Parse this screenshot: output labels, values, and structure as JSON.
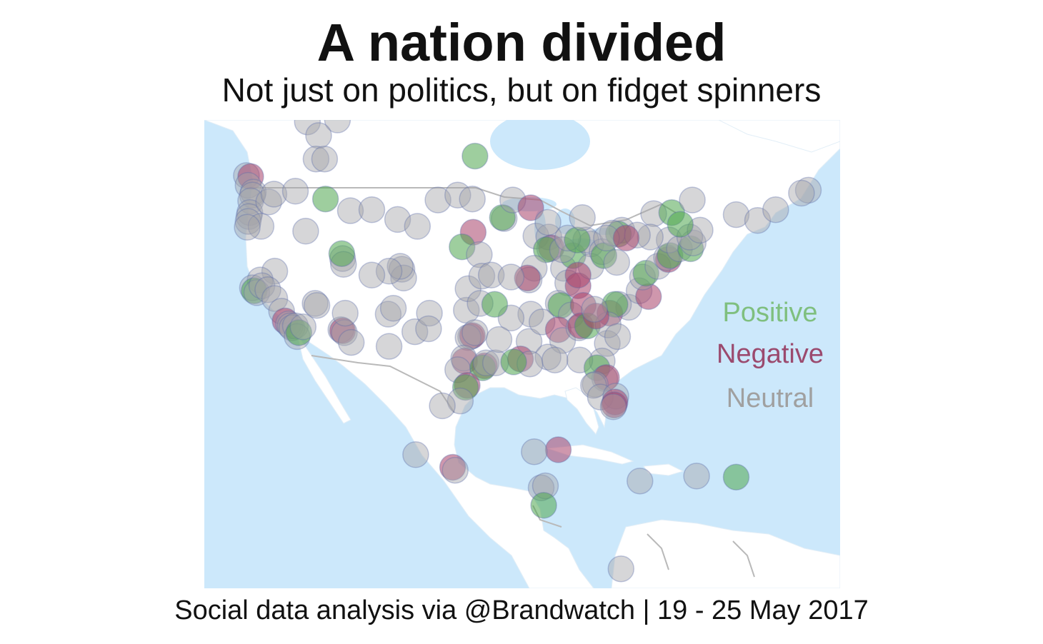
{
  "title": "A nation divided",
  "subtitle": "Not just on politics, but on fidget spinners",
  "footer": "Social data analysis via @Brandwatch | 19 - 25 May 2017",
  "legend": {
    "positive": "Positive",
    "negative": "Negative",
    "neutral": "Neutral"
  },
  "colors": {
    "ocean": "#cce8fb",
    "land": "#ffffff",
    "border": "#b9b9b9",
    "positive": "#4ea64e",
    "negative": "#a8416a",
    "neutral": "#a4a4a8",
    "point_outline": "#5a6aa8",
    "legend_positive": "#7fbf7f",
    "legend_negative": "#9b4a6e",
    "legend_neutral": "#a0a0a0"
  },
  "map_extent": {
    "lon": [
      -128,
      -54
    ],
    "lat": [
      7,
      55
    ]
  },
  "points": [
    {
      "lon": -116.0,
      "lat": 54.8,
      "s": "neutral"
    },
    {
      "lon": -112.5,
      "lat": 55.0,
      "s": "neutral"
    },
    {
      "lon": -114.7,
      "lat": 53.4,
      "s": "neutral"
    },
    {
      "lon": -96.5,
      "lat": 51.3,
      "s": "positive"
    },
    {
      "lon": -115.0,
      "lat": 51.0,
      "s": "neutral"
    },
    {
      "lon": -114.0,
      "lat": 51.0,
      "s": "neutral"
    },
    {
      "lon": -123.1,
      "lat": 49.3,
      "s": "neutral"
    },
    {
      "lon": -122.6,
      "lat": 49.2,
      "s": "negative"
    },
    {
      "lon": -122.9,
      "lat": 48.3,
      "s": "neutral"
    },
    {
      "lon": -122.3,
      "lat": 47.6,
      "s": "neutral"
    },
    {
      "lon": -122.4,
      "lat": 47.3,
      "s": "neutral"
    },
    {
      "lon": -122.6,
      "lat": 46.7,
      "s": "neutral"
    },
    {
      "lon": -122.7,
      "lat": 45.5,
      "s": "neutral"
    },
    {
      "lon": -122.8,
      "lat": 45.1,
      "s": "neutral"
    },
    {
      "lon": -122.9,
      "lat": 44.6,
      "s": "neutral"
    },
    {
      "lon": -120.5,
      "lat": 46.6,
      "s": "neutral"
    },
    {
      "lon": -119.9,
      "lat": 47.4,
      "s": "neutral"
    },
    {
      "lon": -121.4,
      "lat": 44.1,
      "s": "neutral"
    },
    {
      "lon": -117.4,
      "lat": 47.7,
      "s": "neutral"
    },
    {
      "lon": -116.2,
      "lat": 43.6,
      "s": "neutral"
    },
    {
      "lon": -123.0,
      "lat": 44.0,
      "s": "neutral"
    },
    {
      "lon": -113.9,
      "lat": 46.9,
      "s": "positive"
    },
    {
      "lon": -111.0,
      "lat": 45.7,
      "s": "neutral"
    },
    {
      "lon": -105.5,
      "lat": 44.8,
      "s": "neutral"
    },
    {
      "lon": -108.5,
      "lat": 45.8,
      "s": "neutral"
    },
    {
      "lon": -100.8,
      "lat": 46.8,
      "s": "neutral"
    },
    {
      "lon": -98.5,
      "lat": 47.3,
      "s": "neutral"
    },
    {
      "lon": -96.8,
      "lat": 46.9,
      "s": "neutral"
    },
    {
      "lon": -103.2,
      "lat": 44.1,
      "s": "neutral"
    },
    {
      "lon": -96.7,
      "lat": 43.5,
      "s": "negative"
    },
    {
      "lon": -98.0,
      "lat": 42.0,
      "s": "positive"
    },
    {
      "lon": -96.0,
      "lat": 41.2,
      "s": "neutral"
    },
    {
      "lon": -111.9,
      "lat": 40.8,
      "s": "neutral"
    },
    {
      "lon": -111.8,
      "lat": 40.2,
      "s": "neutral"
    },
    {
      "lon": -112.0,
      "lat": 41.3,
      "s": "positive"
    },
    {
      "lon": -105.0,
      "lat": 39.7,
      "s": "neutral"
    },
    {
      "lon": -104.8,
      "lat": 38.8,
      "s": "neutral"
    },
    {
      "lon": -105.2,
      "lat": 40.0,
      "s": "neutral"
    },
    {
      "lon": -106.5,
      "lat": 39.5,
      "s": "neutral"
    },
    {
      "lon": -108.5,
      "lat": 39.1,
      "s": "neutral"
    },
    {
      "lon": -119.8,
      "lat": 39.5,
      "s": "neutral"
    },
    {
      "lon": -121.5,
      "lat": 38.6,
      "s": "neutral"
    },
    {
      "lon": -122.4,
      "lat": 37.8,
      "s": "neutral"
    },
    {
      "lon": -122.2,
      "lat": 37.5,
      "s": "positive"
    },
    {
      "lon": -121.9,
      "lat": 37.3,
      "s": "neutral"
    },
    {
      "lon": -121.3,
      "lat": 38.0,
      "s": "neutral"
    },
    {
      "lon": -120.6,
      "lat": 37.6,
      "s": "neutral"
    },
    {
      "lon": -119.8,
      "lat": 36.7,
      "s": "neutral"
    },
    {
      "lon": -119.0,
      "lat": 35.4,
      "s": "neutral"
    },
    {
      "lon": -118.6,
      "lat": 34.4,
      "s": "negative"
    },
    {
      "lon": -118.2,
      "lat": 34.1,
      "s": "neutral"
    },
    {
      "lon": -118.0,
      "lat": 33.9,
      "s": "neutral"
    },
    {
      "lon": -117.8,
      "lat": 33.7,
      "s": "neutral"
    },
    {
      "lon": -117.4,
      "lat": 33.9,
      "s": "neutral"
    },
    {
      "lon": -117.2,
      "lat": 32.8,
      "s": "neutral"
    },
    {
      "lon": -117.0,
      "lat": 33.2,
      "s": "positive"
    },
    {
      "lon": -116.5,
      "lat": 33.8,
      "s": "neutral"
    },
    {
      "lon": -115.1,
      "lat": 36.2,
      "s": "neutral"
    },
    {
      "lon": -114.9,
      "lat": 36.0,
      "s": "neutral"
    },
    {
      "lon": -112.1,
      "lat": 33.5,
      "s": "neutral"
    },
    {
      "lon": -111.9,
      "lat": 33.4,
      "s": "negative"
    },
    {
      "lon": -111.7,
      "lat": 33.2,
      "s": "neutral"
    },
    {
      "lon": -110.9,
      "lat": 32.2,
      "s": "neutral"
    },
    {
      "lon": -111.6,
      "lat": 35.2,
      "s": "neutral"
    },
    {
      "lon": -106.6,
      "lat": 35.1,
      "s": "neutral"
    },
    {
      "lon": -106.0,
      "lat": 35.7,
      "s": "neutral"
    },
    {
      "lon": -106.5,
      "lat": 31.8,
      "s": "neutral"
    },
    {
      "lon": -103.5,
      "lat": 33.3,
      "s": "neutral"
    },
    {
      "lon": -101.8,
      "lat": 35.2,
      "s": "neutral"
    },
    {
      "lon": -101.9,
      "lat": 33.6,
      "s": "neutral"
    },
    {
      "lon": -97.5,
      "lat": 35.5,
      "s": "neutral"
    },
    {
      "lon": -97.3,
      "lat": 37.7,
      "s": "neutral"
    },
    {
      "lon": -95.7,
      "lat": 39.0,
      "s": "neutral"
    },
    {
      "lon": -94.6,
      "lat": 39.1,
      "s": "neutral"
    },
    {
      "lon": -95.9,
      "lat": 36.2,
      "s": "neutral"
    },
    {
      "lon": -97.0,
      "lat": 32.8,
      "s": "neutral"
    },
    {
      "lon": -96.8,
      "lat": 32.9,
      "s": "negative"
    },
    {
      "lon": -97.3,
      "lat": 32.7,
      "s": "neutral"
    },
    {
      "lon": -96.5,
      "lat": 33.2,
      "s": "neutral"
    },
    {
      "lon": -97.7,
      "lat": 30.3,
      "s": "negative"
    },
    {
      "lon": -97.8,
      "lat": 30.6,
      "s": "neutral"
    },
    {
      "lon": -98.5,
      "lat": 29.4,
      "s": "neutral"
    },
    {
      "lon": -95.4,
      "lat": 29.8,
      "s": "negative"
    },
    {
      "lon": -95.6,
      "lat": 29.6,
      "s": "positive"
    },
    {
      "lon": -95.2,
      "lat": 30.1,
      "s": "neutral"
    },
    {
      "lon": -94.1,
      "lat": 30.1,
      "s": "neutral"
    },
    {
      "lon": -97.4,
      "lat": 27.8,
      "s": "negative"
    },
    {
      "lon": -97.6,
      "lat": 27.6,
      "s": "positive"
    },
    {
      "lon": -98.2,
      "lat": 26.2,
      "s": "neutral"
    },
    {
      "lon": -100.3,
      "lat": 25.7,
      "s": "neutral"
    },
    {
      "lon": -103.4,
      "lat": 20.7,
      "s": "neutral"
    },
    {
      "lon": -99.1,
      "lat": 19.4,
      "s": "negative"
    },
    {
      "lon": -98.8,
      "lat": 19.1,
      "s": "neutral"
    },
    {
      "lon": -93.1,
      "lat": 44.9,
      "s": "neutral"
    },
    {
      "lon": -93.3,
      "lat": 45.0,
      "s": "positive"
    },
    {
      "lon": -92.1,
      "lat": 46.8,
      "s": "neutral"
    },
    {
      "lon": -90.0,
      "lat": 46.0,
      "s": "negative"
    },
    {
      "lon": -89.4,
      "lat": 43.1,
      "s": "neutral"
    },
    {
      "lon": -87.9,
      "lat": 43.0,
      "s": "neutral"
    },
    {
      "lon": -88.0,
      "lat": 44.5,
      "s": "neutral"
    },
    {
      "lon": -87.6,
      "lat": 41.9,
      "s": "negative"
    },
    {
      "lon": -87.8,
      "lat": 41.8,
      "s": "neutral"
    },
    {
      "lon": -88.2,
      "lat": 41.7,
      "s": "positive"
    },
    {
      "lon": -89.6,
      "lat": 39.8,
      "s": "neutral"
    },
    {
      "lon": -90.2,
      "lat": 38.6,
      "s": "neutral"
    },
    {
      "lon": -90.4,
      "lat": 38.8,
      "s": "negative"
    },
    {
      "lon": -92.3,
      "lat": 38.9,
      "s": "neutral"
    },
    {
      "lon": -86.2,
      "lat": 39.8,
      "s": "neutral"
    },
    {
      "lon": -85.1,
      "lat": 41.1,
      "s": "positive"
    },
    {
      "lon": -86.3,
      "lat": 41.7,
      "s": "neutral"
    },
    {
      "lon": -85.7,
      "lat": 38.3,
      "s": "neutral"
    },
    {
      "lon": -84.5,
      "lat": 38.0,
      "s": "negative"
    },
    {
      "lon": -83.0,
      "lat": 42.3,
      "s": "neutral"
    },
    {
      "lon": -83.6,
      "lat": 42.7,
      "s": "neutral"
    },
    {
      "lon": -85.7,
      "lat": 42.9,
      "s": "neutral"
    },
    {
      "lon": -84.6,
      "lat": 42.7,
      "s": "positive"
    },
    {
      "lon": -84.0,
      "lat": 45.0,
      "s": "neutral"
    },
    {
      "lon": -83.0,
      "lat": 40.0,
      "s": "neutral"
    },
    {
      "lon": -84.5,
      "lat": 39.1,
      "s": "negative"
    },
    {
      "lon": -81.7,
      "lat": 41.5,
      "s": "neutral"
    },
    {
      "lon": -81.5,
      "lat": 41.1,
      "s": "positive"
    },
    {
      "lon": -80.0,
      "lat": 40.4,
      "s": "neutral"
    },
    {
      "lon": -79.4,
      "lat": 43.7,
      "s": "neutral"
    },
    {
      "lon": -79.8,
      "lat": 43.3,
      "s": "positive"
    },
    {
      "lon": -80.5,
      "lat": 43.4,
      "s": "neutral"
    },
    {
      "lon": -81.2,
      "lat": 42.9,
      "s": "neutral"
    },
    {
      "lon": -75.7,
      "lat": 45.4,
      "s": "neutral"
    },
    {
      "lon": -73.6,
      "lat": 45.5,
      "s": "positive"
    },
    {
      "lon": -71.2,
      "lat": 46.8,
      "s": "neutral"
    },
    {
      "lon": -78.6,
      "lat": 35.8,
      "s": "neutral"
    },
    {
      "lon": -80.8,
      "lat": 35.2,
      "s": "negative"
    },
    {
      "lon": -79.8,
      "lat": 36.1,
      "s": "neutral"
    },
    {
      "lon": -80.2,
      "lat": 36.1,
      "s": "positive"
    },
    {
      "lon": -77.4,
      "lat": 37.5,
      "s": "neutral"
    },
    {
      "lon": -76.3,
      "lat": 36.9,
      "s": "negative"
    },
    {
      "lon": -77.0,
      "lat": 38.9,
      "s": "neutral"
    },
    {
      "lon": -76.6,
      "lat": 39.3,
      "s": "positive"
    },
    {
      "lon": -75.2,
      "lat": 40.0,
      "s": "neutral"
    },
    {
      "lon": -74.0,
      "lat": 40.7,
      "s": "negative"
    },
    {
      "lon": -74.2,
      "lat": 40.9,
      "s": "neutral"
    },
    {
      "lon": -73.8,
      "lat": 41.1,
      "s": "positive"
    },
    {
      "lon": -73.9,
      "lat": 42.7,
      "s": "neutral"
    },
    {
      "lon": -76.1,
      "lat": 43.0,
      "s": "neutral"
    },
    {
      "lon": -77.6,
      "lat": 43.2,
      "s": "neutral"
    },
    {
      "lon": -78.9,
      "lat": 42.9,
      "s": "negative"
    },
    {
      "lon": -72.7,
      "lat": 41.8,
      "s": "neutral"
    },
    {
      "lon": -71.4,
      "lat": 41.8,
      "s": "positive"
    },
    {
      "lon": -71.1,
      "lat": 42.4,
      "s": "neutral"
    },
    {
      "lon": -71.5,
      "lat": 43.0,
      "s": "neutral"
    },
    {
      "lon": -70.3,
      "lat": 43.7,
      "s": "neutral"
    },
    {
      "lon": -72.6,
      "lat": 44.3,
      "s": "positive"
    },
    {
      "lon": -66.1,
      "lat": 45.3,
      "s": "neutral"
    },
    {
      "lon": -63.6,
      "lat": 44.7,
      "s": "neutral"
    },
    {
      "lon": -61.5,
      "lat": 45.8,
      "s": "neutral"
    },
    {
      "lon": -57.7,
      "lat": 47.8,
      "s": "neutral"
    },
    {
      "lon": -58.5,
      "lat": 47.5,
      "s": "neutral"
    },
    {
      "lon": -86.8,
      "lat": 36.2,
      "s": "neutral"
    },
    {
      "lon": -86.5,
      "lat": 36.0,
      "s": "positive"
    },
    {
      "lon": -85.3,
      "lat": 35.0,
      "s": "neutral"
    },
    {
      "lon": -83.9,
      "lat": 36.0,
      "s": "negative"
    },
    {
      "lon": -90.0,
      "lat": 35.1,
      "s": "neutral"
    },
    {
      "lon": -92.3,
      "lat": 34.7,
      "s": "neutral"
    },
    {
      "lon": -94.2,
      "lat": 36.1,
      "s": "positive"
    },
    {
      "lon": -90.2,
      "lat": 32.3,
      "s": "neutral"
    },
    {
      "lon": -88.7,
      "lat": 34.3,
      "s": "neutral"
    },
    {
      "lon": -86.8,
      "lat": 33.5,
      "s": "negative"
    },
    {
      "lon": -86.3,
      "lat": 32.4,
      "s": "neutral"
    },
    {
      "lon": -88.0,
      "lat": 30.7,
      "s": "neutral"
    },
    {
      "lon": -91.2,
      "lat": 30.5,
      "s": "negative"
    },
    {
      "lon": -90.1,
      "lat": 30.0,
      "s": "neutral"
    },
    {
      "lon": -92.0,
      "lat": 30.2,
      "s": "positive"
    },
    {
      "lon": -93.7,
      "lat": 32.5,
      "s": "neutral"
    },
    {
      "lon": -84.4,
      "lat": 33.7,
      "s": "neutral"
    },
    {
      "lon": -84.2,
      "lat": 33.9,
      "s": "negative"
    },
    {
      "lon": -83.4,
      "lat": 33.9,
      "s": "positive"
    },
    {
      "lon": -81.1,
      "lat": 32.1,
      "s": "neutral"
    },
    {
      "lon": -81.0,
      "lat": 34.0,
      "s": "neutral"
    },
    {
      "lon": -79.9,
      "lat": 32.8,
      "s": "neutral"
    },
    {
      "lon": -82.4,
      "lat": 34.9,
      "s": "negative"
    },
    {
      "lon": -82.6,
      "lat": 35.6,
      "s": "neutral"
    },
    {
      "lon": -81.7,
      "lat": 30.3,
      "s": "neutral"
    },
    {
      "lon": -84.3,
      "lat": 30.4,
      "s": "neutral"
    },
    {
      "lon": -87.2,
      "lat": 30.4,
      "s": "neutral"
    },
    {
      "lon": -82.3,
      "lat": 29.6,
      "s": "positive"
    },
    {
      "lon": -81.4,
      "lat": 28.5,
      "s": "neutral"
    },
    {
      "lon": -81.2,
      "lat": 28.6,
      "s": "negative"
    },
    {
      "lon": -82.5,
      "lat": 27.9,
      "s": "neutral"
    },
    {
      "lon": -82.7,
      "lat": 27.8,
      "s": "neutral"
    },
    {
      "lon": -81.9,
      "lat": 26.6,
      "s": "neutral"
    },
    {
      "lon": -80.1,
      "lat": 26.7,
      "s": "neutral"
    },
    {
      "lon": -80.2,
      "lat": 26.1,
      "s": "negative"
    },
    {
      "lon": -80.3,
      "lat": 25.8,
      "s": "negative"
    },
    {
      "lon": -80.4,
      "lat": 25.6,
      "s": "neutral"
    },
    {
      "lon": -86.8,
      "lat": 21.2,
      "s": "negative"
    },
    {
      "lon": -89.6,
      "lat": 21.0,
      "s": "neutral"
    },
    {
      "lon": -88.8,
      "lat": 17.3,
      "s": "neutral"
    },
    {
      "lon": -88.3,
      "lat": 17.5,
      "s": "neutral"
    },
    {
      "lon": -88.5,
      "lat": 15.5,
      "s": "positive"
    },
    {
      "lon": -77.3,
      "lat": 18.0,
      "s": "neutral"
    },
    {
      "lon": -70.7,
      "lat": 18.5,
      "s": "neutral"
    },
    {
      "lon": -66.1,
      "lat": 18.4,
      "s": "positive"
    },
    {
      "lon": -79.5,
      "lat": 9.0,
      "s": "neutral"
    }
  ]
}
